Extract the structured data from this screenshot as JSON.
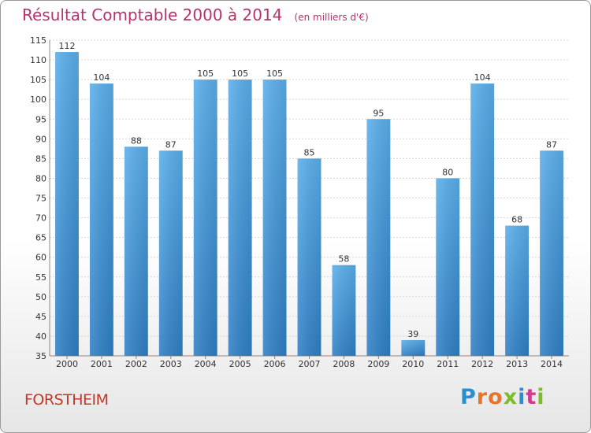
{
  "chart_data": {
    "type": "bar",
    "title": "Résultat Comptable 2000 à 2014",
    "subtitle": "(en milliers d'€)",
    "categories": [
      "2000",
      "2001",
      "2002",
      "2003",
      "2004",
      "2005",
      "2006",
      "2007",
      "2008",
      "2009",
      "2010",
      "2011",
      "2012",
      "2013",
      "2014"
    ],
    "values": [
      112,
      104,
      88,
      87,
      105,
      105,
      105,
      85,
      58,
      95,
      39,
      80,
      104,
      68,
      87
    ],
    "ylim": [
      35,
      115
    ],
    "yticks": [
      35,
      40,
      45,
      50,
      55,
      60,
      65,
      70,
      75,
      80,
      85,
      90,
      95,
      100,
      105,
      110,
      115
    ],
    "grid": true,
    "bar_color": "#3a8fd6"
  },
  "footer": {
    "city": "FORSTHEIM",
    "logo_text": "Proxiti"
  },
  "colors": {
    "title": "#b5326e",
    "city": "#c0392b",
    "logo_letters": [
      "#2a8fd0",
      "#e8742a",
      "#e8742a",
      "#7dbb2d",
      "#2a8fd0",
      "#d23c8c",
      "#7dbb2d"
    ]
  }
}
